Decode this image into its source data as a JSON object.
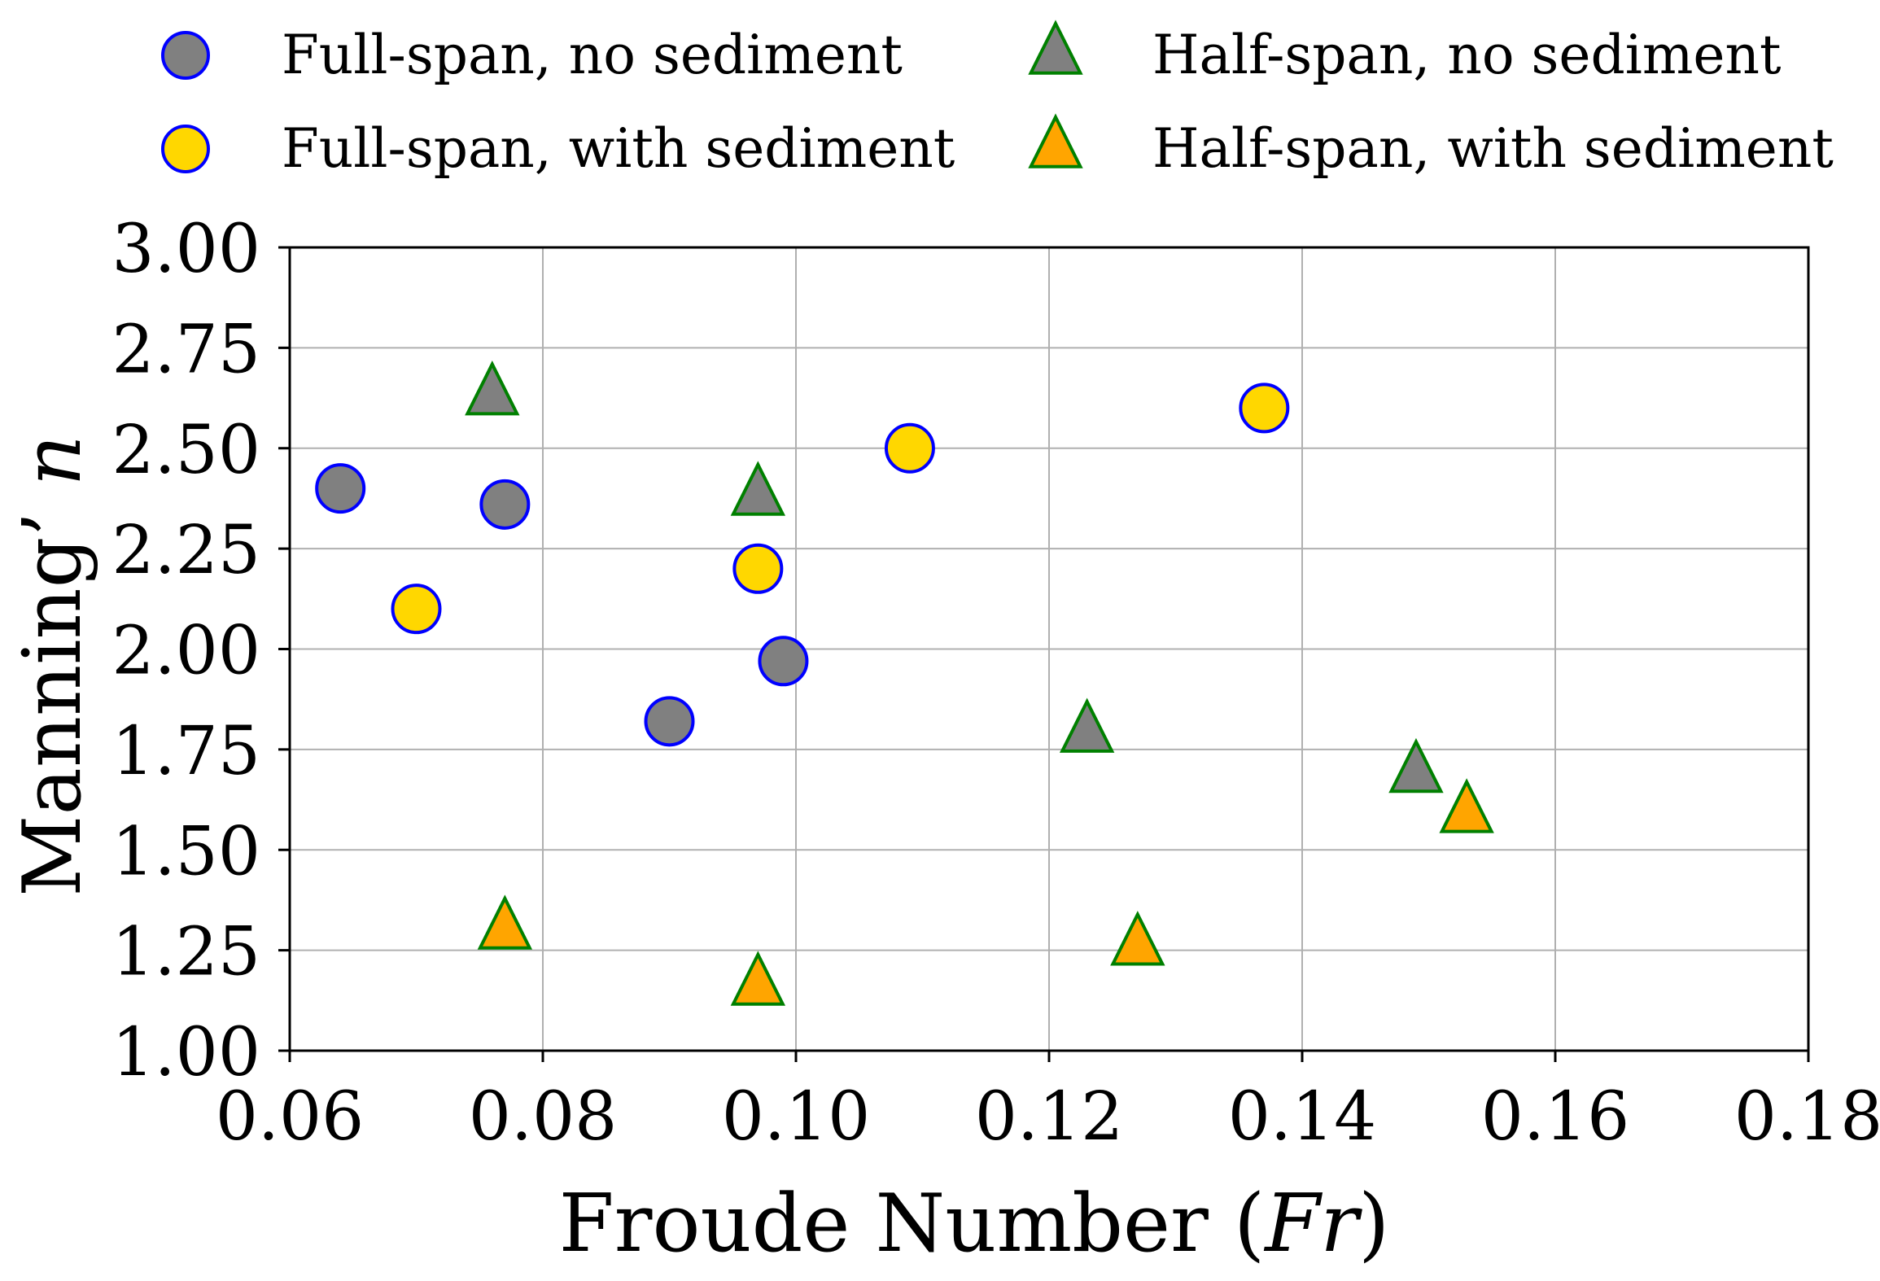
{
  "chart_data": {
    "type": "scatter",
    "xlabel": "Froude Number (Fr)",
    "ylabel": "Manning' n",
    "xlim": [
      0.06,
      0.18
    ],
    "ylim": [
      1.0,
      3.0
    ],
    "x_ticks": [
      "0.06",
      "0.08",
      "0.10",
      "0.12",
      "0.14",
      "0.16",
      "0.18"
    ],
    "y_ticks": [
      "1.00",
      "1.25",
      "1.50",
      "1.75",
      "2.00",
      "2.25",
      "2.50",
      "2.75",
      "3.00"
    ],
    "x_tick_values": [
      0.06,
      0.08,
      0.1,
      0.12,
      0.14,
      0.16,
      0.18
    ],
    "y_tick_values": [
      1.0,
      1.25,
      1.5,
      1.75,
      2.0,
      2.25,
      2.5,
      2.75,
      3.0
    ],
    "grid": true,
    "legend_position": "top",
    "series": [
      {
        "name": "Full-span, no sediment",
        "marker": "circle",
        "fill": "#808080",
        "edge": "#0000ff",
        "points": [
          [
            0.064,
            2.4
          ],
          [
            0.077,
            2.36
          ],
          [
            0.09,
            1.82
          ],
          [
            0.099,
            1.97
          ]
        ]
      },
      {
        "name": "Full-span, with sediment",
        "marker": "circle",
        "fill": "#ffd700",
        "edge": "#0000ff",
        "points": [
          [
            0.07,
            2.1
          ],
          [
            0.097,
            2.2
          ],
          [
            0.109,
            2.5
          ],
          [
            0.137,
            2.6
          ]
        ]
      },
      {
        "name": "Half-span, no sediment",
        "marker": "triangle",
        "fill": "#808080",
        "edge": "#008000",
        "points": [
          [
            0.076,
            2.63
          ],
          [
            0.097,
            2.38
          ],
          [
            0.123,
            1.79
          ],
          [
            0.149,
            1.69
          ]
        ]
      },
      {
        "name": "Half-span, with sediment",
        "marker": "triangle",
        "fill": "#ffa500",
        "edge": "#008000",
        "points": [
          [
            0.077,
            1.3
          ],
          [
            0.097,
            1.16
          ],
          [
            0.127,
            1.26
          ],
          [
            0.153,
            1.59
          ]
        ]
      }
    ]
  }
}
